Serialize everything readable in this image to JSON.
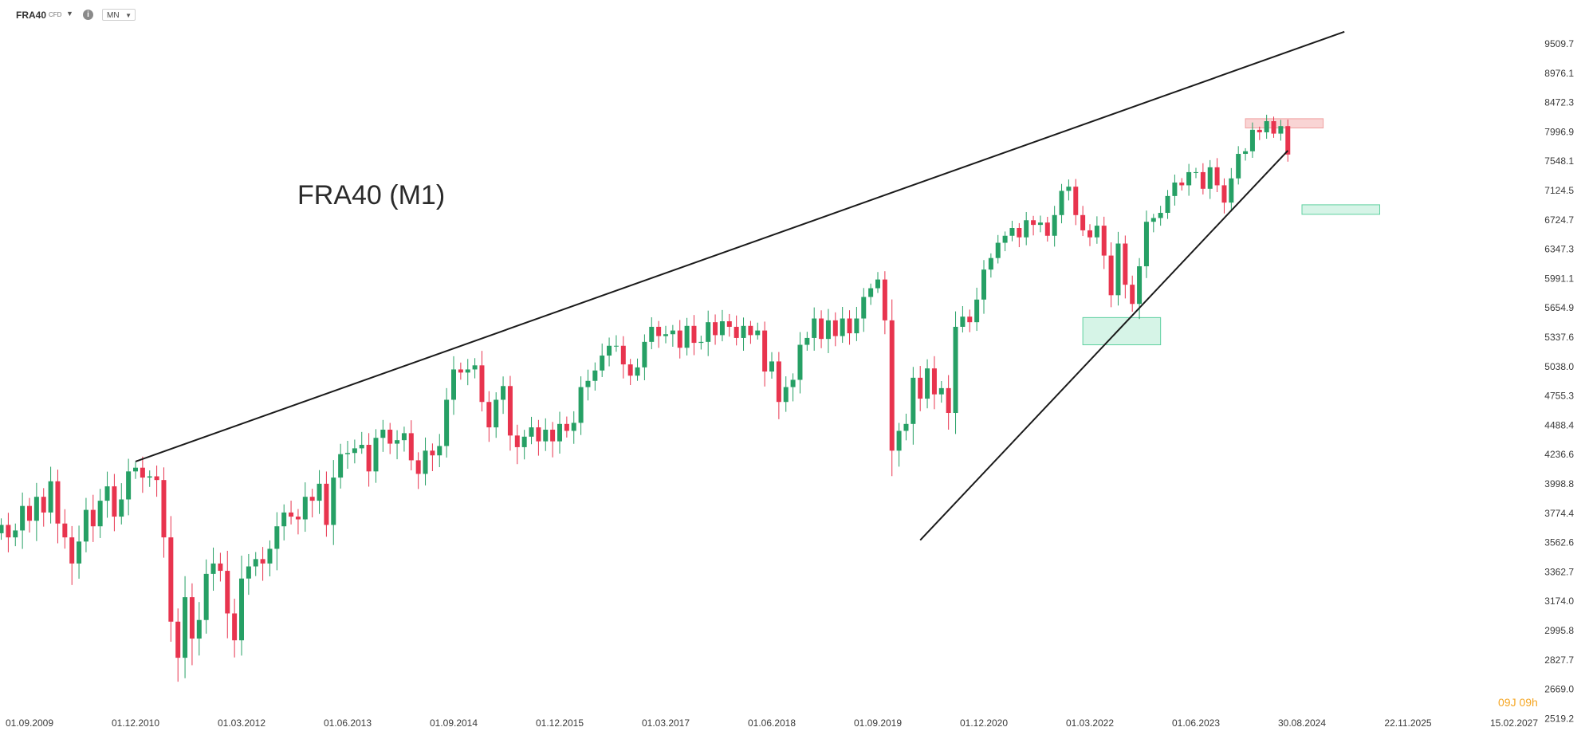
{
  "toolbar": {
    "symbol": "FRA40",
    "instrument_type": "CFD",
    "info_icon": "info-icon",
    "interval": "MN"
  },
  "chart_data": {
    "type": "candlestick",
    "title": "FRA40 (M1)",
    "ylim": [
      2520,
      9750
    ],
    "y_ticks": [
      9509.7,
      8976.1,
      8472.3,
      7996.9,
      7548.1,
      7124.5,
      6724.7,
      6347.3,
      5991.1,
      5654.9,
      5337.6,
      5038.0,
      4755.3,
      4488.4,
      4236.6,
      3998.8,
      3774.4,
      3562.6,
      3362.7,
      3174.0,
      2995.8,
      2827.7,
      2669.0,
      2519.2
    ],
    "x_ticks": [
      "01.09.2009",
      "01.12.2010",
      "01.03.2012",
      "01.06.2013",
      "01.09.2014",
      "01.12.2015",
      "01.03.2017",
      "01.06.2018",
      "01.09.2019",
      "01.12.2020",
      "01.03.2022",
      "01.06.2023",
      "30.08.2024",
      "22.11.2025",
      "15.02.2027"
    ],
    "timer_label": "09J 09h",
    "colors": {
      "up": "#26a065",
      "down": "#e8344e",
      "line": "#1a1a1a",
      "zone_green": "#c8f0df",
      "zone_red": "#f7c6c6"
    },
    "close_series": [
      3690,
      3600,
      3650,
      3830,
      3720,
      3900,
      3780,
      4020,
      3700,
      3600,
      3420,
      3570,
      3800,
      3680,
      3870,
      3980,
      3750,
      3880,
      4100,
      4130,
      4050,
      4060,
      4030,
      3600,
      3050,
      2840,
      3200,
      2950,
      3060,
      3350,
      3420,
      3370,
      3100,
      2940,
      3320,
      3400,
      3450,
      3420,
      3520,
      3680,
      3780,
      3750,
      3730,
      3900,
      3870,
      4000,
      3690,
      4050,
      4240,
      4250,
      4290,
      4320,
      4100,
      4380,
      4450,
      4330,
      4360,
      4420,
      4190,
      4080,
      4270,
      4230,
      4310,
      4720,
      5010,
      4980,
      5010,
      5050,
      4700,
      4470,
      4720,
      4850,
      4400,
      4300,
      4390,
      4470,
      4350,
      4450,
      4350,
      4500,
      4440,
      4510,
      4840,
      4900,
      5000,
      5150,
      5250,
      5250,
      5060,
      4950,
      5030,
      5290,
      5450,
      5350,
      5370,
      5410,
      5230,
      5460,
      5280,
      5290,
      5500,
      5360,
      5510,
      5450,
      5330,
      5460,
      5360,
      5410,
      4990,
      5090,
      4700,
      4840,
      4910,
      5260,
      5330,
      5540,
      5320,
      5520,
      5350,
      5540,
      5380,
      5540,
      5780,
      5880,
      5980,
      5520,
      4270,
      4440,
      4500,
      4930,
      4730,
      5020,
      4770,
      4830,
      4600,
      5450,
      5560,
      5500,
      5750,
      6100,
      6240,
      6430,
      6520,
      6620,
      6500,
      6720,
      6660,
      6690,
      6520,
      6790,
      7120,
      7180,
      6790,
      6590,
      6500,
      6650,
      6270,
      5800,
      6420,
      5920,
      5700,
      6140,
      6700,
      6750,
      6820,
      7050,
      7240,
      7200,
      7390,
      7390,
      7150,
      7460,
      7200,
      6960,
      7300,
      7660,
      7700,
      8030,
      7990,
      8170,
      7970,
      8090,
      7650
    ],
    "trendlines": [
      {
        "name": "upper-resistance",
        "from": [
          "01.12.2010",
          4180
        ],
        "to": [
          "01.03.2025",
          9730
        ]
      },
      {
        "name": "lower-support",
        "from": [
          "01.03.2020",
          3580
        ],
        "to": [
          "01.07.2024",
          7710
        ]
      }
    ],
    "zones": [
      {
        "name": "green-zone-2022",
        "color": "green",
        "x": [
          "01.02.2022",
          "01.01.2023"
        ],
        "y": [
          5260,
          5550
        ]
      },
      {
        "name": "red-zone-2024",
        "color": "red",
        "x": [
          "01.01.2024",
          "01.12.2024"
        ],
        "y": [
          8060,
          8210
        ]
      },
      {
        "name": "green-zone-2025",
        "color": "green",
        "x": [
          "01.09.2024",
          "01.08.2025"
        ],
        "y": [
          6800,
          6930
        ]
      }
    ]
  }
}
